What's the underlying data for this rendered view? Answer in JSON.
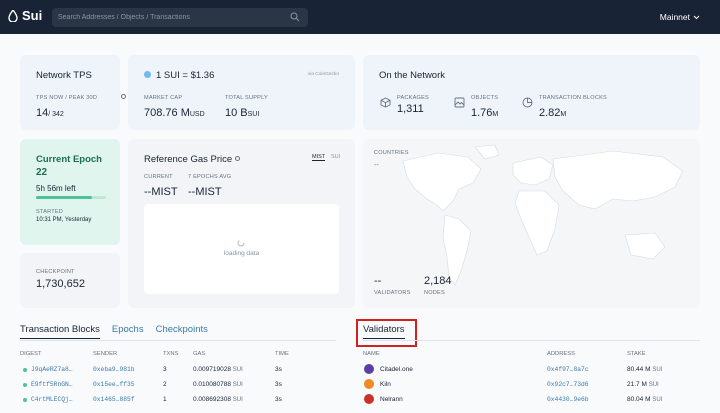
{
  "header": {
    "logo_text": "Sui",
    "search_placeholder": "Search Addresses / Objects / Transactions",
    "network": "Mainnet"
  },
  "tps": {
    "title": "Network TPS",
    "label": "TPS NOW / PEAK 30D",
    "now": "14",
    "peak": "/ 342"
  },
  "price": {
    "title": "1 SUI = $1.36",
    "source": "via CoinGecko",
    "market_cap_label": "MARKET CAP",
    "market_cap_value": "708.76 M",
    "market_cap_unit": "USD",
    "supply_label": "TOTAL SUPPLY",
    "supply_value": "10 B",
    "supply_unit": "SUI"
  },
  "network_stats": {
    "title": "On the Network",
    "packages_label": "PACKAGES",
    "packages_value": "1,311",
    "objects_label": "OBJECTS",
    "objects_value": "1.76",
    "objects_unit": "M",
    "tx_label": "TRANSACTION BLOCKS",
    "tx_value": "2.82",
    "tx_unit": "M"
  },
  "epoch": {
    "title": "Current Epoch",
    "number": "22",
    "time_left": "5h 56m left",
    "progress": 0.8,
    "started_label": "STARTED",
    "started_value": "10:31 PM, Yesterday"
  },
  "gas": {
    "title": "Reference Gas Price",
    "toggle_mist": "MIST",
    "toggle_sui": "SUI",
    "current_label": "CURRENT",
    "current_value": "--",
    "current_unit": "MIST",
    "avg_label": "7 EPOCHS AVG",
    "avg_value": "--",
    "avg_unit": "MIST",
    "loading": "loading data"
  },
  "checkpoint": {
    "label": "CHECKPOINT",
    "value": "1,730,652"
  },
  "map": {
    "countries_label": "COUNTRIES",
    "countries_value": "--",
    "validators_value": "--",
    "validators_label": "VALIDATORS",
    "nodes_value": "2,184",
    "nodes_label": "NODES"
  },
  "tabs": {
    "tx": "Transaction Blocks",
    "epochs": "Epochs",
    "checkpoints": "Checkpoints",
    "validators": "Validators"
  },
  "tx_table": {
    "headers": {
      "digest": "DIGEST",
      "sender": "SENDER",
      "txns": "TXNS",
      "gas": "GAS",
      "time": "TIME"
    },
    "rows": [
      {
        "digest": "J9qAeRZ7a8…",
        "sender": "0xeba9…981b",
        "txns": "3",
        "gas": "0.009719028",
        "gas_unit": "SUI",
        "time": "3s"
      },
      {
        "digest": "E9ftf5RnGN…",
        "sender": "0x15ee…ff35",
        "txns": "2",
        "gas": "0.010080788",
        "gas_unit": "SUI",
        "time": "3s"
      },
      {
        "digest": "C4rtMLECQj…",
        "sender": "0x1465…885f",
        "txns": "1",
        "gas": "0.008692308",
        "gas_unit": "SUI",
        "time": "3s"
      }
    ]
  },
  "validators_table": {
    "headers": {
      "name": "NAME",
      "address": "ADDRESS",
      "stake": "STAKE"
    },
    "rows": [
      {
        "name": "Citadel.one",
        "address": "0x4f97…8a7c",
        "stake": "80.44 M",
        "unit": "SUI",
        "color": "#5b3fa8"
      },
      {
        "name": "Kiln",
        "address": "0x92c7…73d6",
        "stake": "21.7 M",
        "unit": "SUI",
        "color": "#f08a24"
      },
      {
        "name": "Nelrann",
        "address": "0x4430…9e6b",
        "stake": "80.04 M",
        "unit": "SUI",
        "color": "#c8322a"
      }
    ]
  },
  "colors": {
    "accent": "#3a7aa8",
    "highlight": "#d32020",
    "topbar": "#182435"
  }
}
